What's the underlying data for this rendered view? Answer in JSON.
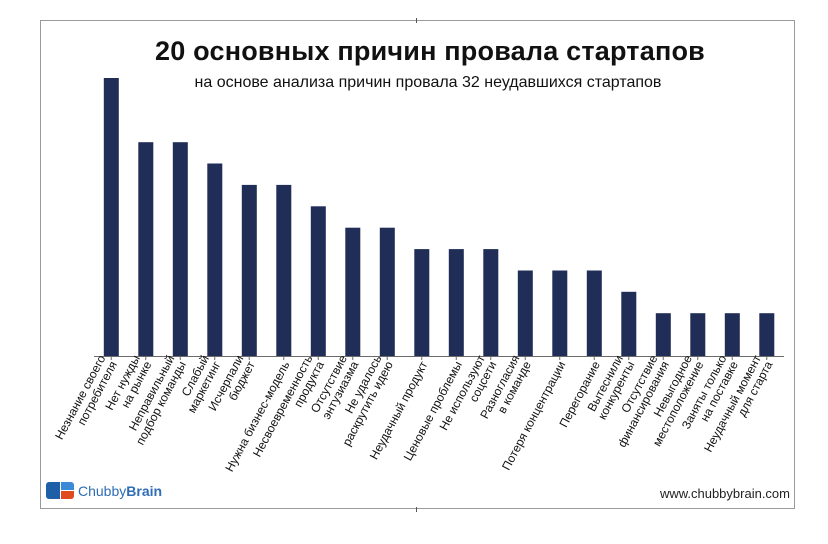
{
  "chart_data": {
    "type": "bar",
    "title": "20 основных причин провала стартапов",
    "subtitle": "на основе анализа причин провала 32 неудавшихся стартапов",
    "categories": [
      [
        "Незнание своего",
        "потребителя"
      ],
      [
        "Нет нужды",
        "на рынке"
      ],
      [
        "Неправильный",
        "подбор команды"
      ],
      [
        "Слабый",
        "маркетинг"
      ],
      [
        "Исчерпали",
        "бюджет"
      ],
      [
        "Нужна бизнес-модель"
      ],
      [
        "Несвоевременность",
        "продукта"
      ],
      [
        "Отсутствие",
        "энтузиазма"
      ],
      [
        "Не удалось",
        "раскрутить идею"
      ],
      [
        "Неудачный продукт"
      ],
      [
        "Ценовые проблемы"
      ],
      [
        "Не используют",
        "соцсети"
      ],
      [
        "Разногласия",
        "в команде"
      ],
      [
        "Потеря концентрации"
      ],
      [
        "Перегорание"
      ],
      [
        "Вытеснили",
        "конкуренты"
      ],
      [
        "Отсутствие",
        "финансирования"
      ],
      [
        "Невыгодное",
        "местоположение"
      ],
      [
        "Заняты только",
        "на поставке"
      ],
      [
        "Неудачный момент",
        "для старта"
      ]
    ],
    "values": [
      13,
      10,
      10,
      9,
      8,
      8,
      7,
      6,
      6,
      5,
      5,
      5,
      4,
      4,
      4,
      3,
      2,
      2,
      2,
      2
    ],
    "ylim": [
      0,
      13
    ],
    "bar_color": "#1f2d57",
    "grid": false,
    "legend": "none"
  },
  "branding": {
    "logo_text_a": "Chubby",
    "logo_text_b": "Brain",
    "site": "www.chubbybrain.com"
  }
}
